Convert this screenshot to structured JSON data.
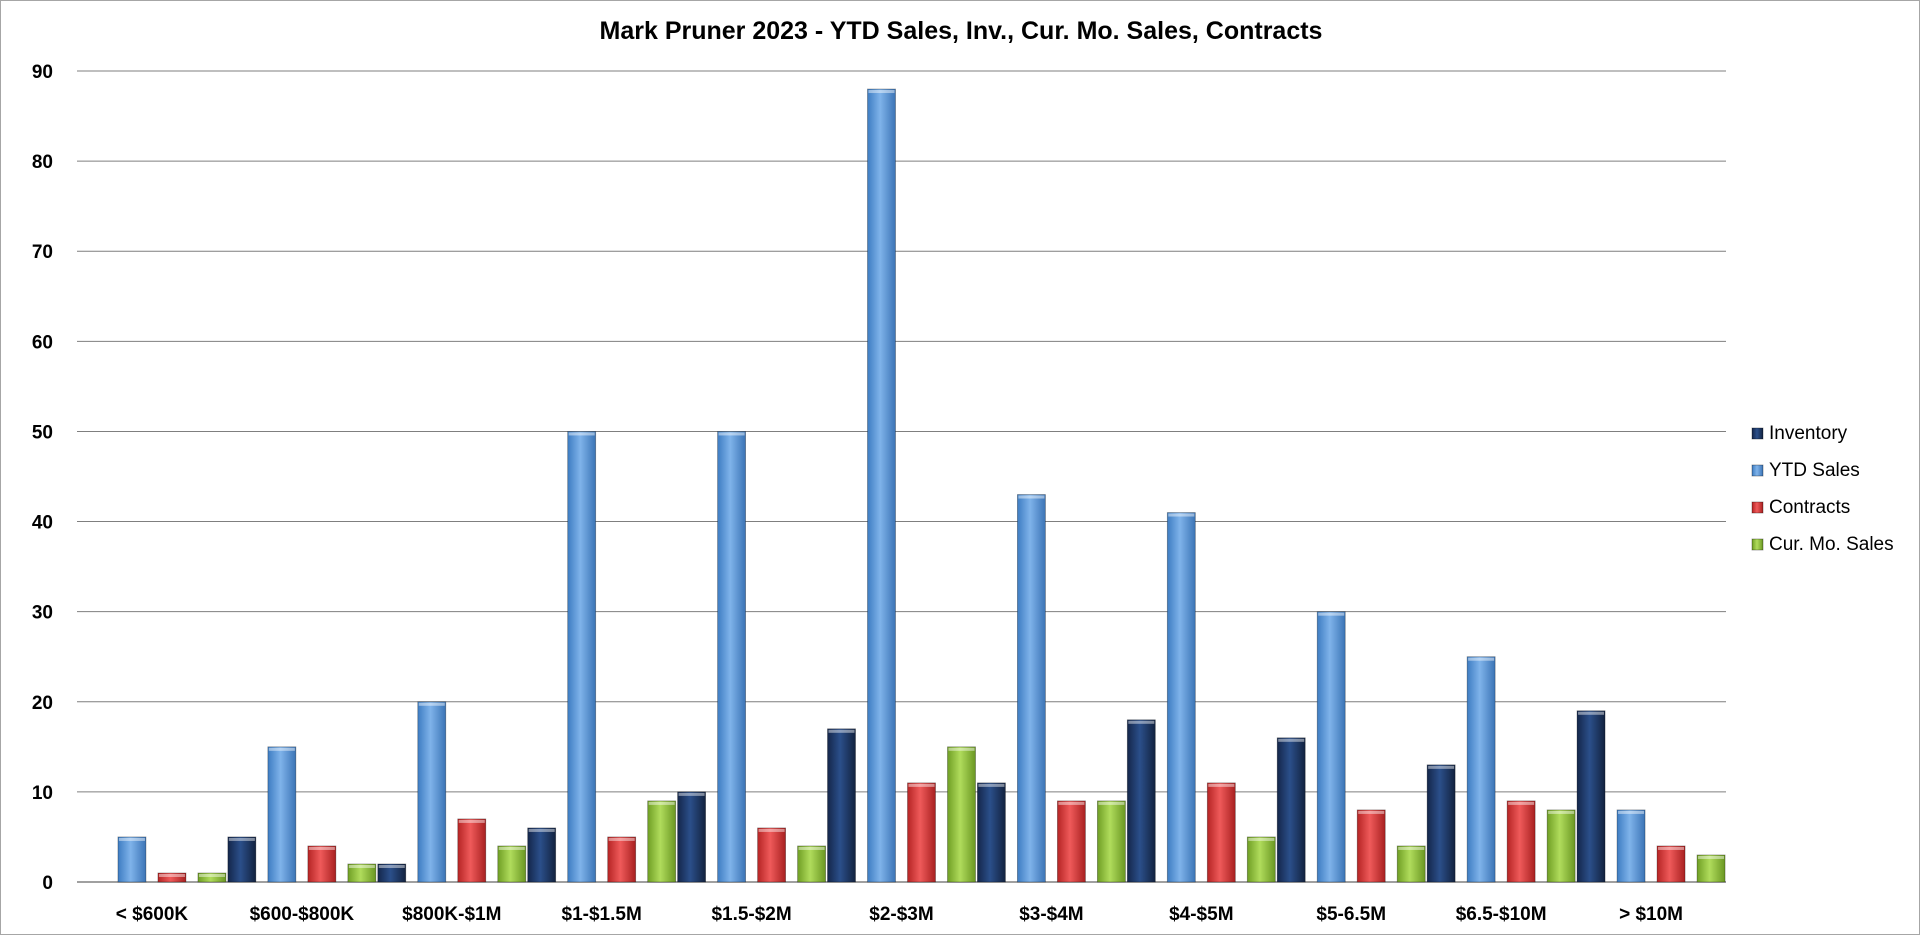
{
  "chart_data": {
    "type": "bar",
    "title": "Mark Pruner 2023 - YTD Sales, Inv., Cur. Mo. Sales, Contracts",
    "xlabel": "",
    "ylabel": "",
    "ylim": [
      0,
      90
    ],
    "yticks": [
      0,
      10,
      20,
      30,
      40,
      50,
      60,
      70,
      80,
      90
    ],
    "grid": true,
    "legend_position": "right",
    "categories": [
      "< $600K",
      "$600-$800K",
      "$800K-$1M",
      "$1-$1.5M",
      "$1.5-$2M",
      "$2-$3M",
      "$3-$4M",
      "$4-$5M",
      "$5-6.5M",
      "$6.5-$10M",
      "> $10M"
    ],
    "series": [
      {
        "name": "Inventory",
        "color": "#1f3864",
        "values": [
          0,
          5,
          2,
          6,
          10,
          17,
          11,
          18,
          16,
          13,
          19
        ]
      },
      {
        "name": "YTD Sales",
        "color": "#5b9bd5",
        "values": [
          5,
          15,
          20,
          50,
          50,
          88,
          43,
          41,
          30,
          25,
          8
        ]
      },
      {
        "name": "Contracts",
        "color": "#d93636",
        "values": [
          1,
          4,
          7,
          5,
          6,
          11,
          9,
          11,
          8,
          9,
          4
        ]
      },
      {
        "name": "Cur. Mo. Sales",
        "color": "#92c83e",
        "values": [
          1,
          2,
          4,
          9,
          4,
          15,
          9,
          5,
          4,
          8,
          3
        ]
      }
    ]
  }
}
